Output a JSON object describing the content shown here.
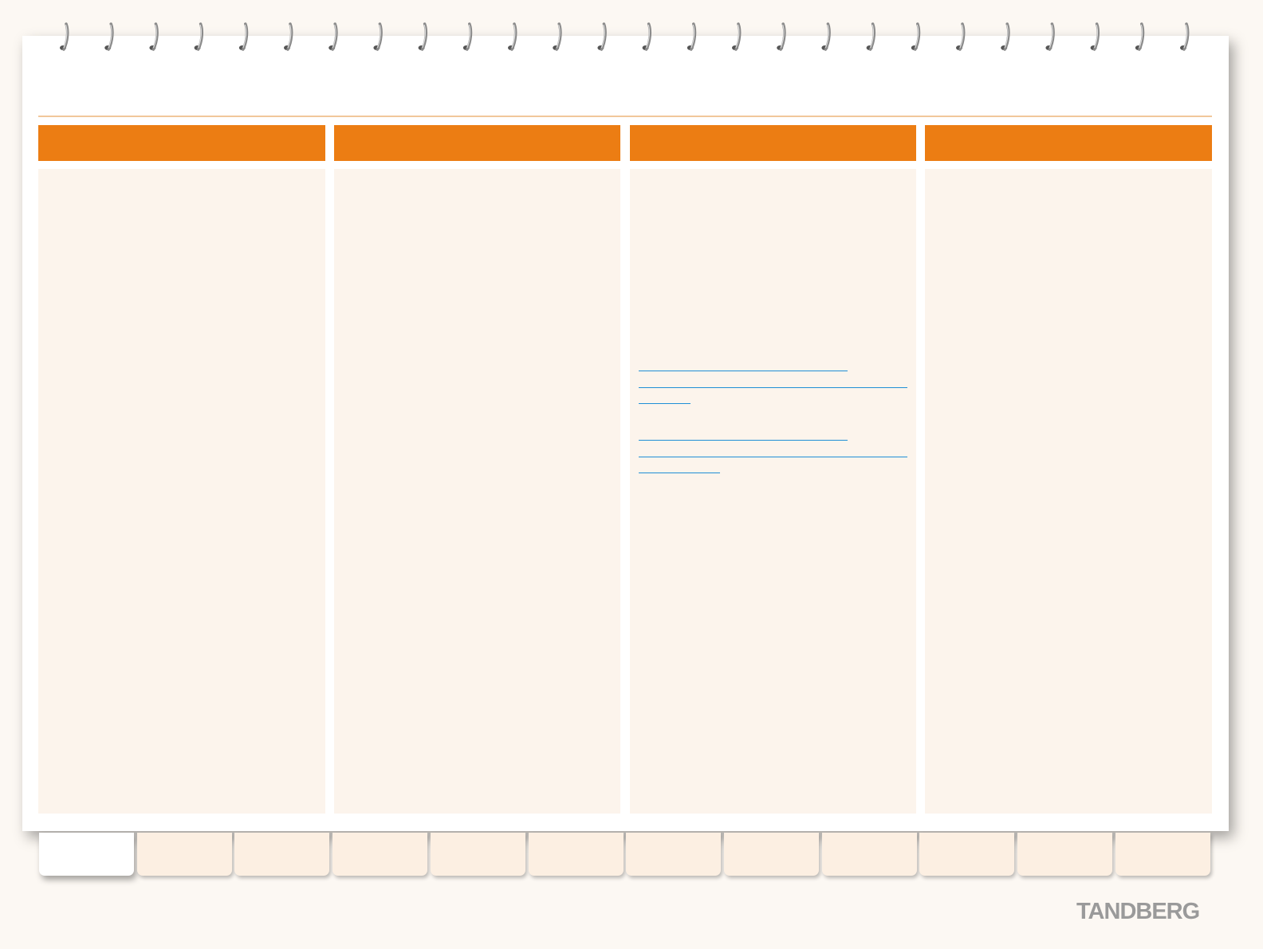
{
  "brand": {
    "logo_text": "TANDBERG"
  },
  "colors": {
    "accent": "#ec7d13",
    "panel": "#fcf4ec",
    "tab": "#fcefe2",
    "link": "#1f8fd6",
    "rule": "#f1c79b"
  },
  "columns": [
    {
      "heading": "",
      "body": ""
    },
    {
      "heading": "",
      "body": ""
    },
    {
      "heading": "",
      "body": ""
    },
    {
      "heading": "",
      "body": ""
    }
  ],
  "tabs": [
    {
      "label": "",
      "active": true
    },
    {
      "label": "",
      "active": false
    },
    {
      "label": "",
      "active": false
    },
    {
      "label": "",
      "active": false
    },
    {
      "label": "",
      "active": false
    },
    {
      "label": "",
      "active": false
    },
    {
      "label": "",
      "active": false
    },
    {
      "label": "",
      "active": false
    },
    {
      "label": "",
      "active": false
    },
    {
      "label": "",
      "active": false
    },
    {
      "label": "",
      "active": false
    },
    {
      "label": "",
      "active": false
    }
  ]
}
